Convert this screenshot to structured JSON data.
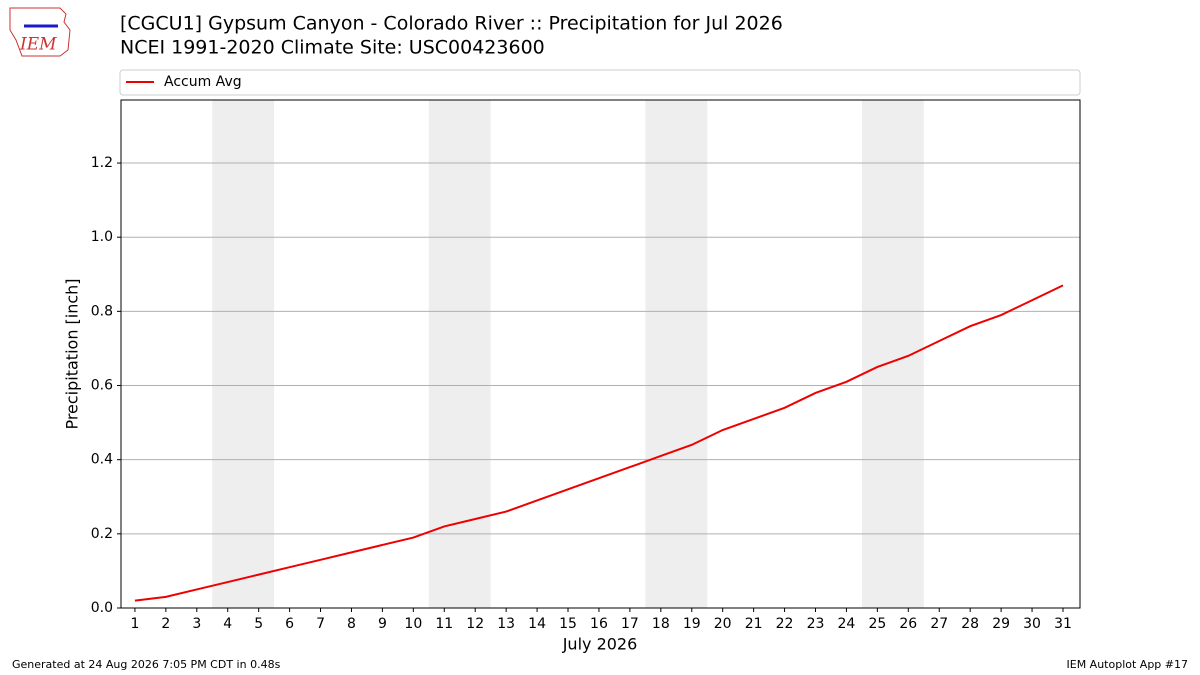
{
  "logo": {
    "text": "IEM"
  },
  "footer": {
    "left": "Generated at 24 Aug 2026 7:05 PM CDT in 0.48s",
    "right": "IEM Autoplot App #17"
  },
  "chart_data": {
    "type": "line",
    "title": "[CGCU1] Gypsum Canyon - Colorado River :: Precipitation for Jul 2026",
    "subtitle": "NCEI 1991-2020 Climate Site: USC00423600",
    "x_label": "July 2026",
    "y_label": "Precipitation [inch]",
    "x": [
      1,
      2,
      3,
      4,
      5,
      6,
      7,
      8,
      9,
      10,
      11,
      12,
      13,
      14,
      15,
      16,
      17,
      18,
      19,
      20,
      21,
      22,
      23,
      24,
      25,
      26,
      27,
      28,
      29,
      30,
      31
    ],
    "series": [
      {
        "name": "Accum Avg",
        "color": "#ee0000",
        "values": [
          0.02,
          0.03,
          0.05,
          0.07,
          0.09,
          0.11,
          0.13,
          0.15,
          0.17,
          0.19,
          0.22,
          0.24,
          0.26,
          0.29,
          0.32,
          0.35,
          0.38,
          0.41,
          0.44,
          0.48,
          0.51,
          0.54,
          0.58,
          0.61,
          0.65,
          0.68,
          0.72,
          0.76,
          0.79,
          0.83,
          0.87
        ]
      }
    ],
    "xlim": [
      0.55,
      31.55
    ],
    "ylim": [
      0,
      1.37
    ],
    "xticks": [
      1,
      2,
      3,
      4,
      5,
      6,
      7,
      8,
      9,
      10,
      11,
      12,
      13,
      14,
      15,
      16,
      17,
      18,
      19,
      20,
      21,
      22,
      23,
      24,
      25,
      26,
      27,
      28,
      29,
      30,
      31
    ],
    "yticks": [
      {
        "value": 0,
        "label": "0.0"
      },
      {
        "value": 0.2,
        "label": "0.2"
      },
      {
        "value": 0.4,
        "label": "0.4"
      },
      {
        "value": 0.6,
        "label": "0.6"
      },
      {
        "value": 0.8,
        "label": "0.8"
      },
      {
        "value": 1.0,
        "label": "1.0"
      },
      {
        "value": 1.2,
        "label": "1.2"
      }
    ],
    "grid": true,
    "legend": "top-left",
    "shaded_ranges": [
      [
        3.5,
        5.5
      ],
      [
        10.5,
        12.5
      ],
      [
        17.5,
        19.5
      ],
      [
        24.5,
        26.5
      ]
    ],
    "shade_color": "#eeeeee"
  }
}
